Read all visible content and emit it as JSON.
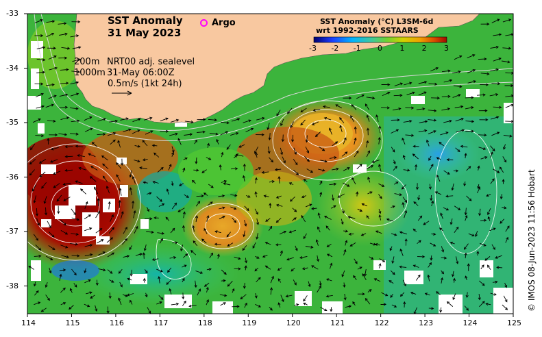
{
  "title": {
    "line1": "SST Anomaly",
    "line2": "31 May 2023"
  },
  "argo": {
    "label": "Argo",
    "color": "#ff00ff"
  },
  "contours": {
    "depth1": "200m",
    "depth2": "1000m"
  },
  "product": {
    "line1": "NRT00 adj. sealevel",
    "line2": "31-May 06:00Z"
  },
  "vector_scale": {
    "label": "0.5m/s (1kt 24h)"
  },
  "colorbar": {
    "title1": "SST Anomaly (°C) L3SM-6d",
    "title2": "wrt 1992-2016 SSTAARS",
    "ticks": [
      "-3",
      "-2",
      "-1",
      "0",
      "1",
      "2",
      "3"
    ],
    "colors": [
      "#00006e",
      "#1a3cff",
      "#00b4ff",
      "#3cc83c",
      "#c8d200",
      "#f0a000",
      "#dc5000",
      "#a00a00"
    ]
  },
  "axes": {
    "x_ticks": [
      "114",
      "115",
      "116",
      "117",
      "118",
      "119",
      "120",
      "121",
      "122",
      "123",
      "124",
      "125"
    ],
    "y_ticks": [
      "-33",
      "-34",
      "-35",
      "-36",
      "-37",
      "-38"
    ]
  },
  "credit": "© IMOS 08-Jun-2023 11:56 Hobart",
  "colors": {
    "land": "#f8c8a0",
    "ocean_base": "#3cb43c"
  }
}
